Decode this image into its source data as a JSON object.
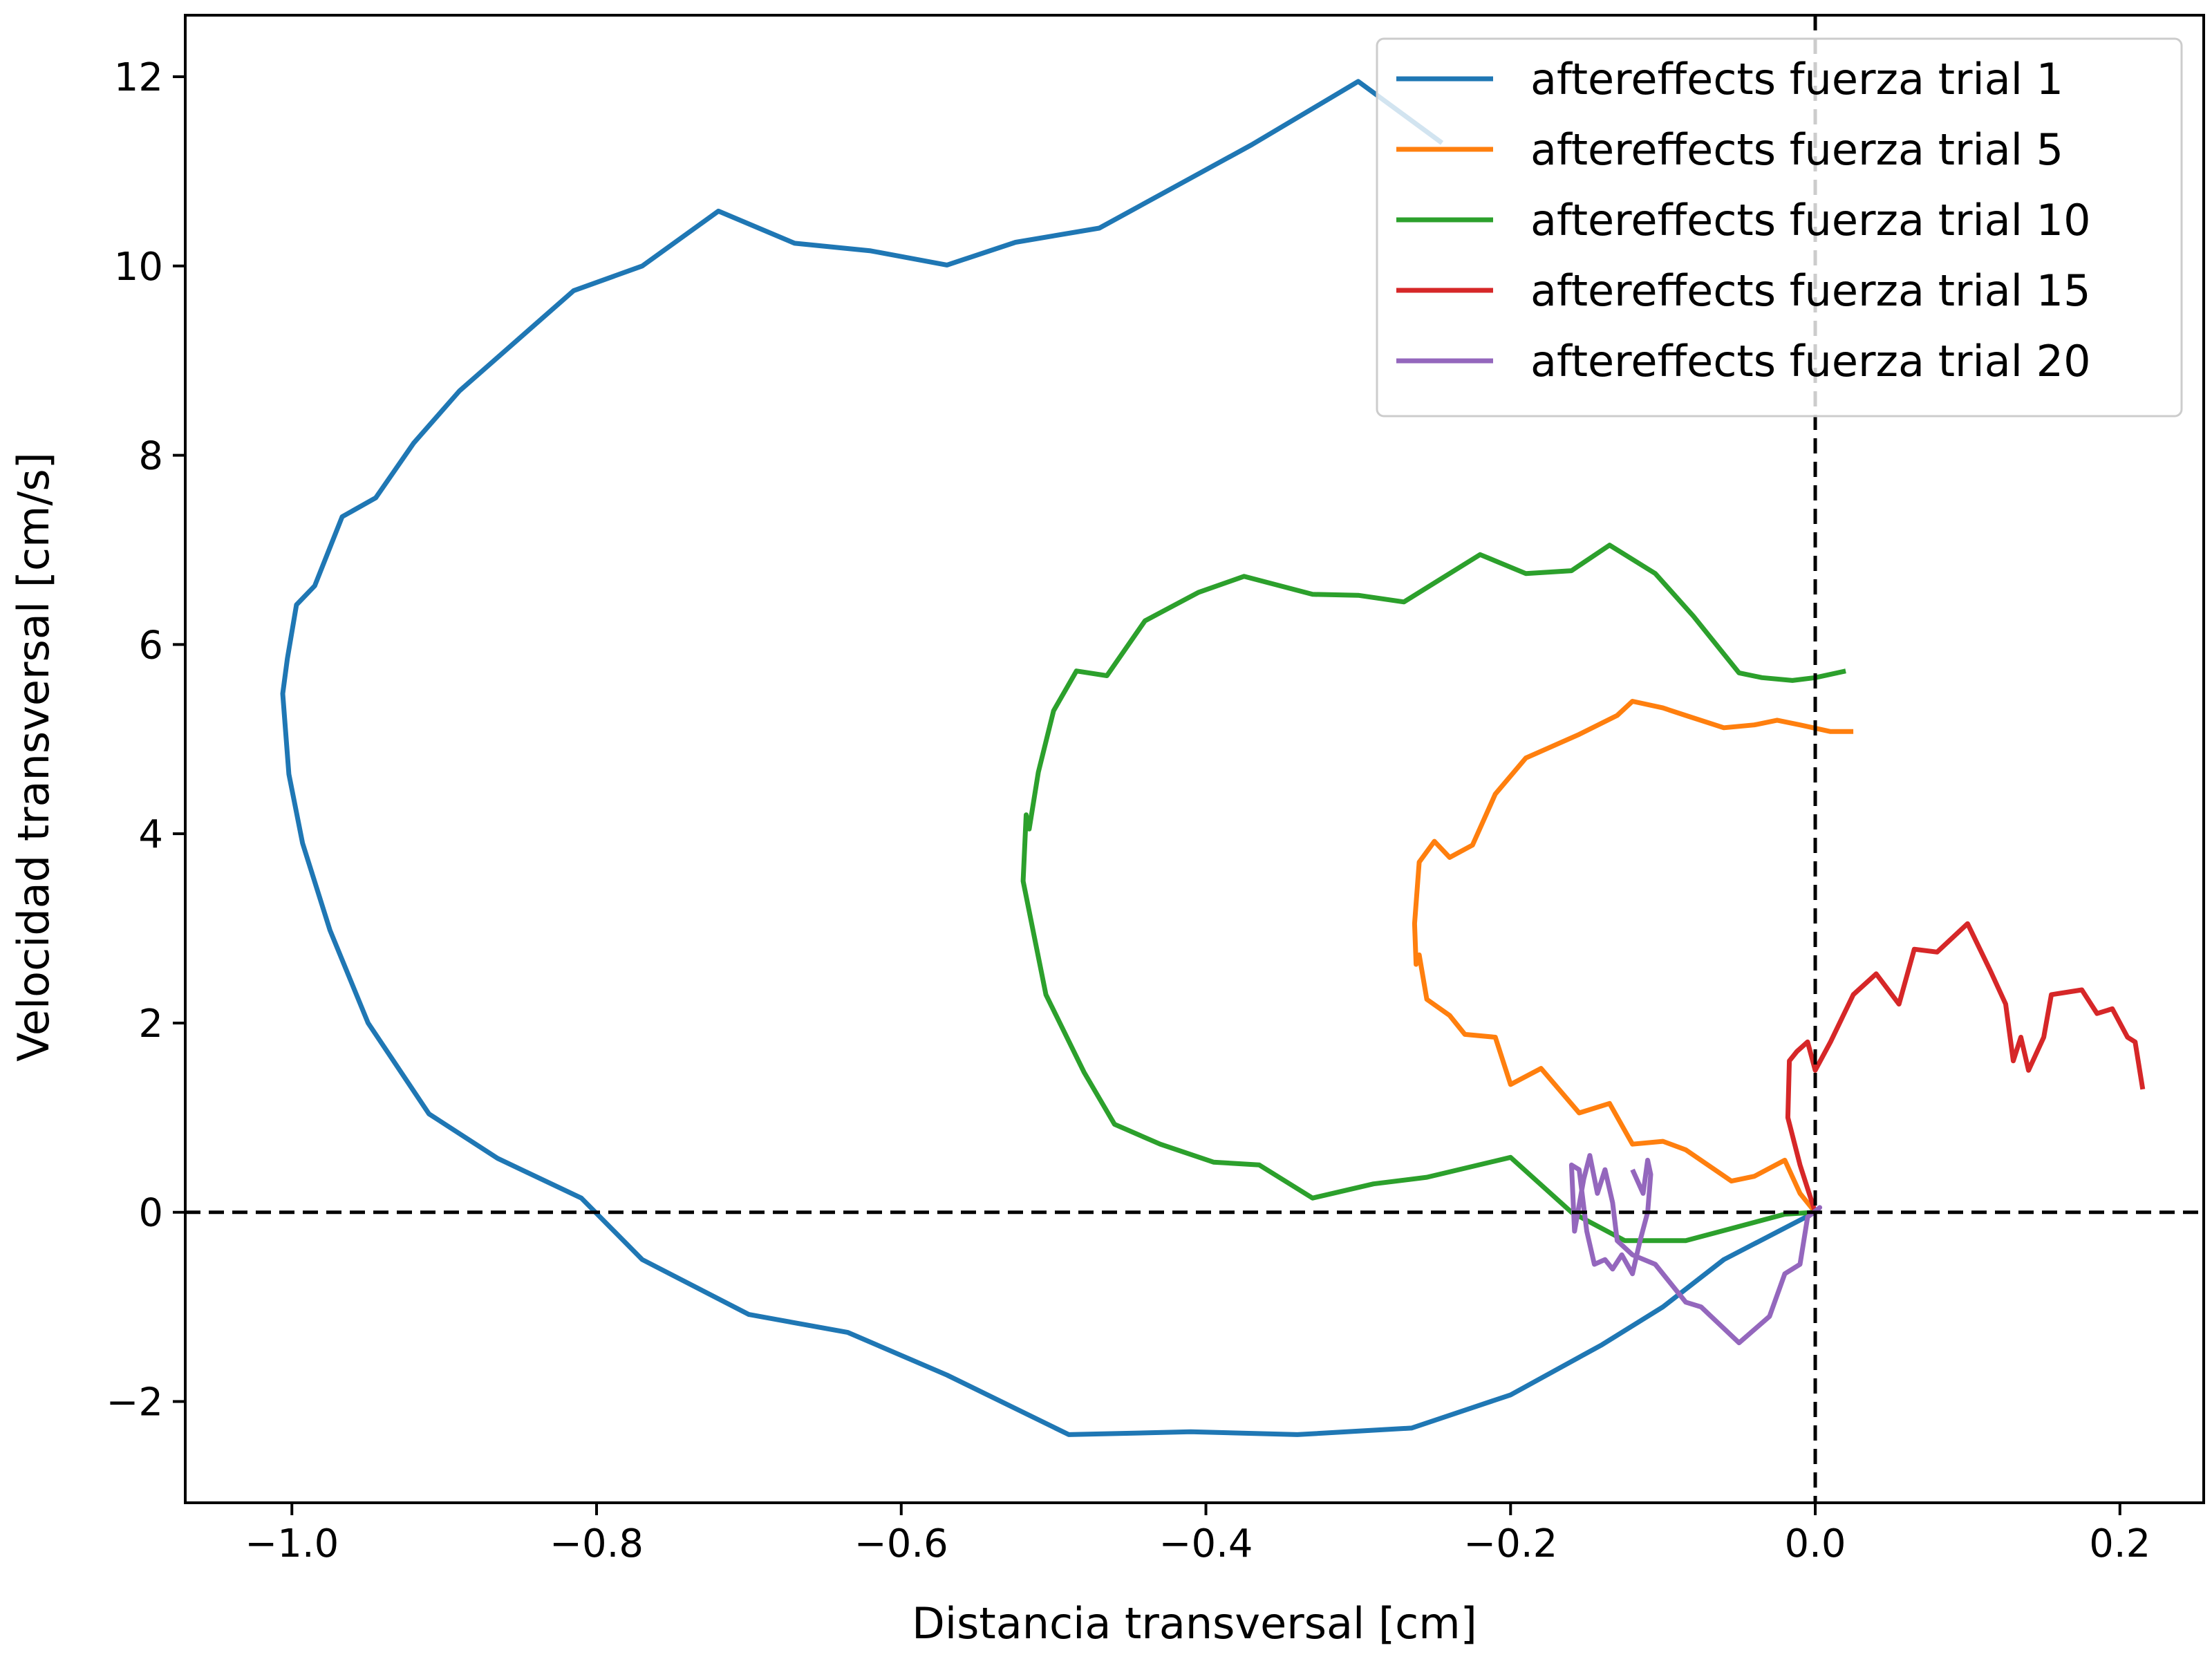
{
  "chart_data": {
    "type": "line",
    "title": "",
    "xlabel": "Distancia transversal [cm]",
    "ylabel": "Velocidad transversal [cm/s]",
    "xlim": [
      -1.07,
      0.255
    ],
    "ylim": [
      -3.07,
      12.65
    ],
    "xticks": [
      {
        "value": -1.0,
        "label": "−1.0"
      },
      {
        "value": -0.8,
        "label": "−0.8"
      },
      {
        "value": -0.6,
        "label": "−0.6"
      },
      {
        "value": -0.4,
        "label": "−0.4"
      },
      {
        "value": -0.2,
        "label": "−0.2"
      },
      {
        "value": 0.0,
        "label": "0.0"
      },
      {
        "value": 0.2,
        "label": "0.2"
      }
    ],
    "yticks": [
      {
        "value": -2,
        "label": "−2"
      },
      {
        "value": 0,
        "label": "0"
      },
      {
        "value": 2,
        "label": "2"
      },
      {
        "value": 4,
        "label": "4"
      },
      {
        "value": 6,
        "label": "6"
      },
      {
        "value": 8,
        "label": "8"
      },
      {
        "value": 10,
        "label": "10"
      },
      {
        "value": 12,
        "label": "12"
      }
    ],
    "reference_lines": {
      "x": 0,
      "y": 0,
      "style": "dashed",
      "color": "#000000"
    },
    "grid": false,
    "legend_position": "top-right",
    "series": [
      {
        "name": "aftereffects fuerza trial 1",
        "color": "#1f77b4",
        "points": [
          [
            0,
            0
          ],
          [
            -0.06,
            -0.5
          ],
          [
            -0.1,
            -1.0
          ],
          [
            -0.14,
            -1.4
          ],
          [
            -0.2,
            -1.93
          ],
          [
            -0.265,
            -2.28
          ],
          [
            -0.34,
            -2.35
          ],
          [
            -0.41,
            -2.32
          ],
          [
            -0.49,
            -2.35
          ],
          [
            -0.57,
            -1.72
          ],
          [
            -0.635,
            -1.27
          ],
          [
            -0.7,
            -1.08
          ],
          [
            -0.77,
            -0.5
          ],
          [
            -0.81,
            0.15
          ],
          [
            -0.865,
            0.57
          ],
          [
            -0.91,
            1.04
          ],
          [
            -0.95,
            2.0
          ],
          [
            -0.975,
            2.98
          ],
          [
            -0.993,
            3.9
          ],
          [
            -1.002,
            4.63
          ],
          [
            -1.006,
            5.48
          ],
          [
            -1.003,
            5.85
          ],
          [
            -0.997,
            6.42
          ],
          [
            -0.985,
            6.62
          ],
          [
            -0.967,
            7.35
          ],
          [
            -0.945,
            7.55
          ],
          [
            -0.92,
            8.13
          ],
          [
            -0.89,
            8.68
          ],
          [
            -0.815,
            9.74
          ],
          [
            -0.77,
            10.0
          ],
          [
            -0.72,
            10.58
          ],
          [
            -0.67,
            10.24
          ],
          [
            -0.62,
            10.16
          ],
          [
            -0.57,
            10.01
          ],
          [
            -0.525,
            10.25
          ],
          [
            -0.47,
            10.4
          ],
          [
            -0.37,
            11.28
          ],
          [
            -0.3,
            11.95
          ],
          [
            -0.245,
            11.3
          ]
        ]
      },
      {
        "name": "aftereffects fuerza trial 5",
        "color": "#ff7f0e",
        "points": [
          [
            0,
            0
          ],
          [
            -0.01,
            0.2
          ],
          [
            -0.02,
            0.55
          ],
          [
            -0.04,
            0.38
          ],
          [
            -0.055,
            0.33
          ],
          [
            -0.085,
            0.66
          ],
          [
            -0.1,
            0.75
          ],
          [
            -0.12,
            0.72
          ],
          [
            -0.135,
            1.15
          ],
          [
            -0.155,
            1.05
          ],
          [
            -0.18,
            1.52
          ],
          [
            -0.2,
            1.35
          ],
          [
            -0.21,
            1.85
          ],
          [
            -0.23,
            1.88
          ],
          [
            -0.24,
            2.08
          ],
          [
            -0.255,
            2.25
          ],
          [
            -0.26,
            2.72
          ],
          [
            -0.262,
            2.62
          ],
          [
            -0.263,
            3.05
          ],
          [
            -0.26,
            3.7
          ],
          [
            -0.25,
            3.92
          ],
          [
            -0.24,
            3.75
          ],
          [
            -0.225,
            3.88
          ],
          [
            -0.21,
            4.42
          ],
          [
            -0.19,
            4.8
          ],
          [
            -0.155,
            5.05
          ],
          [
            -0.13,
            5.25
          ],
          [
            -0.12,
            5.4
          ],
          [
            -0.1,
            5.33
          ],
          [
            -0.085,
            5.25
          ],
          [
            -0.06,
            5.12
          ],
          [
            -0.04,
            5.15
          ],
          [
            -0.025,
            5.2
          ],
          [
            -0.01,
            5.15
          ],
          [
            0.01,
            5.08
          ],
          [
            0.025,
            5.08
          ]
        ]
      },
      {
        "name": "aftereffects fuerza trial 10",
        "color": "#2ca02c",
        "points": [
          [
            0,
            0
          ],
          [
            -0.02,
            -0.02
          ],
          [
            -0.05,
            -0.15
          ],
          [
            -0.085,
            -0.3
          ],
          [
            -0.125,
            -0.3
          ],
          [
            -0.16,
            0.0
          ],
          [
            -0.2,
            0.58
          ],
          [
            -0.255,
            0.37
          ],
          [
            -0.29,
            0.3
          ],
          [
            -0.33,
            0.15
          ],
          [
            -0.365,
            0.5
          ],
          [
            -0.395,
            0.53
          ],
          [
            -0.43,
            0.72
          ],
          [
            -0.46,
            0.93
          ],
          [
            -0.48,
            1.48
          ],
          [
            -0.505,
            2.3
          ],
          [
            -0.52,
            3.5
          ],
          [
            -0.518,
            4.2
          ],
          [
            -0.516,
            4.05
          ],
          [
            -0.51,
            4.65
          ],
          [
            -0.5,
            5.3
          ],
          [
            -0.485,
            5.72
          ],
          [
            -0.465,
            5.67
          ],
          [
            -0.44,
            6.25
          ],
          [
            -0.405,
            6.55
          ],
          [
            -0.375,
            6.72
          ],
          [
            -0.33,
            6.53
          ],
          [
            -0.3,
            6.52
          ],
          [
            -0.27,
            6.45
          ],
          [
            -0.245,
            6.7
          ],
          [
            -0.22,
            6.95
          ],
          [
            -0.19,
            6.75
          ],
          [
            -0.16,
            6.78
          ],
          [
            -0.135,
            7.05
          ],
          [
            -0.105,
            6.75
          ],
          [
            -0.08,
            6.3
          ],
          [
            -0.05,
            5.7
          ],
          [
            -0.035,
            5.65
          ],
          [
            -0.015,
            5.62
          ],
          [
            0.0,
            5.65
          ],
          [
            0.02,
            5.72
          ]
        ]
      },
      {
        "name": "aftereffects fuerza trial 15",
        "color": "#d62728",
        "points": [
          [
            0,
            0
          ],
          [
            -0.01,
            0.5
          ],
          [
            -0.018,
            1.0
          ],
          [
            -0.017,
            1.6
          ],
          [
            -0.012,
            1.7
          ],
          [
            -0.005,
            1.8
          ],
          [
            0.0,
            1.5
          ],
          [
            0.01,
            1.8
          ],
          [
            0.025,
            2.3
          ],
          [
            0.04,
            2.52
          ],
          [
            0.055,
            2.2
          ],
          [
            0.065,
            2.78
          ],
          [
            0.08,
            2.75
          ],
          [
            0.1,
            3.05
          ],
          [
            0.115,
            2.55
          ],
          [
            0.125,
            2.2
          ],
          [
            0.13,
            1.6
          ],
          [
            0.135,
            1.85
          ],
          [
            0.14,
            1.5
          ],
          [
            0.15,
            1.85
          ],
          [
            0.155,
            2.3
          ],
          [
            0.175,
            2.35
          ],
          [
            0.185,
            2.1
          ],
          [
            0.195,
            2.15
          ],
          [
            0.205,
            1.85
          ],
          [
            0.21,
            1.8
          ],
          [
            0.215,
            1.3
          ]
        ]
      },
      {
        "name": "aftereffects fuerza trial 20",
        "color": "#9467bd",
        "points": [
          [
            0,
            0
          ],
          [
            0.003,
            0.05
          ],
          [
            -0.005,
            -0.05
          ],
          [
            -0.01,
            -0.55
          ],
          [
            -0.02,
            -0.65
          ],
          [
            -0.03,
            -1.1
          ],
          [
            -0.05,
            -1.38
          ],
          [
            -0.075,
            -1.0
          ],
          [
            -0.085,
            -0.95
          ],
          [
            -0.105,
            -0.55
          ],
          [
            -0.12,
            -0.45
          ],
          [
            -0.13,
            -0.3
          ],
          [
            -0.133,
            0.1
          ],
          [
            -0.138,
            0.45
          ],
          [
            -0.143,
            0.2
          ],
          [
            -0.148,
            0.6
          ],
          [
            -0.152,
            0.35
          ],
          [
            -0.158,
            -0.2
          ],
          [
            -0.16,
            0.5
          ],
          [
            -0.155,
            0.45
          ],
          [
            -0.15,
            -0.2
          ],
          [
            -0.145,
            -0.55
          ],
          [
            -0.138,
            -0.5
          ],
          [
            -0.133,
            -0.6
          ],
          [
            -0.127,
            -0.45
          ],
          [
            -0.12,
            -0.65
          ],
          [
            -0.115,
            -0.3
          ],
          [
            -0.11,
            0.0
          ],
          [
            -0.108,
            0.4
          ],
          [
            -0.11,
            0.55
          ],
          [
            -0.113,
            0.2
          ],
          [
            -0.12,
            0.45
          ]
        ]
      }
    ]
  }
}
